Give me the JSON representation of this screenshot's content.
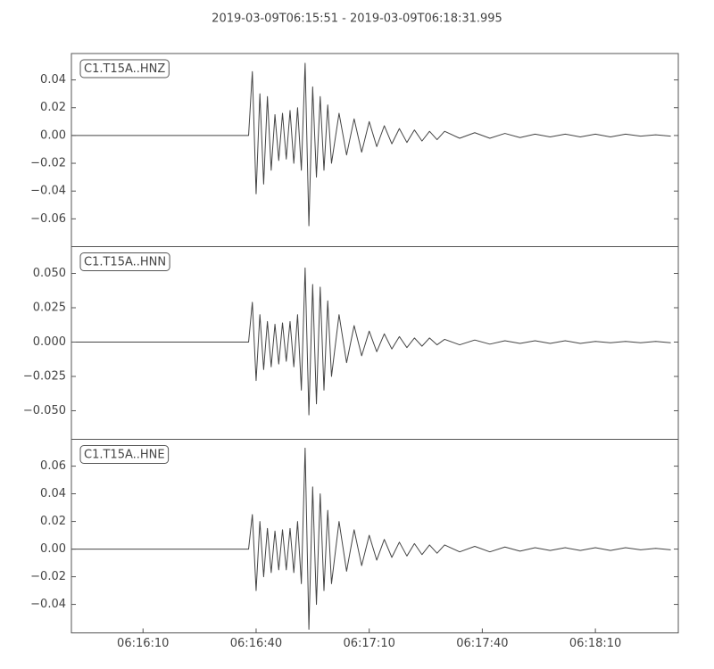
{
  "chart_data": [
    {
      "type": "line",
      "title": "2019-03-09T06:15:51  -  2019-03-09T06:18:31.995",
      "label": "C1.T15A..HNZ",
      "xlim": [
        "06:15:51",
        "06:18:31.995"
      ],
      "ylim": [
        -0.08,
        0.059
      ],
      "yticks": [
        {
          "value": 0.04,
          "label": "0.04"
        },
        {
          "value": 0.02,
          "label": "0.02"
        },
        {
          "value": 0,
          "label": "0.00"
        },
        {
          "value": -0.02,
          "label": "−0.02"
        },
        {
          "value": -0.04,
          "label": "−0.04"
        },
        {
          "value": -0.06,
          "label": "−0.06"
        }
      ],
      "color": "#444444",
      "x": [
        "06:15:51",
        "06:16:38",
        "06:16:39",
        "06:16:40",
        "06:16:41",
        "06:16:42",
        "06:16:43",
        "06:16:44",
        "06:16:45",
        "06:16:46",
        "06:16:47",
        "06:16:48",
        "06:16:49",
        "06:16:50",
        "06:16:51",
        "06:16:52",
        "06:16:53",
        "06:16:54",
        "06:16:55",
        "06:16:56",
        "06:16:57",
        "06:16:58",
        "06:16:59",
        "06:17:00",
        "06:17:02",
        "06:17:04",
        "06:17:06",
        "06:17:08",
        "06:17:10",
        "06:17:12",
        "06:17:14",
        "06:17:16",
        "06:17:18",
        "06:17:20",
        "06:17:22",
        "06:17:24",
        "06:17:26",
        "06:17:28",
        "06:17:30",
        "06:17:34",
        "06:17:38",
        "06:17:42",
        "06:17:46",
        "06:17:50",
        "06:17:54",
        "06:17:58",
        "06:18:02",
        "06:18:06",
        "06:18:10",
        "06:18:14",
        "06:18:18",
        "06:18:22",
        "06:18:26",
        "06:18:30"
      ],
      "values": [
        0,
        0,
        0.046,
        -0.042,
        0.03,
        -0.035,
        0.028,
        -0.025,
        0.015,
        -0.018,
        0.016,
        -0.017,
        0.018,
        -0.02,
        0.02,
        -0.025,
        0.052,
        -0.065,
        0.035,
        -0.03,
        0.028,
        -0.025,
        0.022,
        -0.02,
        0.016,
        -0.014,
        0.012,
        -0.012,
        0.01,
        -0.008,
        0.007,
        -0.006,
        0.005,
        -0.005,
        0.004,
        -0.004,
        0.003,
        -0.003,
        0.003,
        -0.002,
        0.002,
        -0.002,
        0.0015,
        -0.0015,
        0.001,
        -0.001,
        0.001,
        -0.001,
        0.001,
        -0.001,
        0.001,
        -0.0005,
        0.0005,
        -0.0005
      ]
    },
    {
      "type": "line",
      "label": "C1.T15A..HNN",
      "xlim": [
        "06:15:51",
        "06:18:31.995"
      ],
      "ylim": [
        -0.0708,
        0.0695
      ],
      "yticks": [
        {
          "value": 0.05,
          "label": "0.050"
        },
        {
          "value": 0.025,
          "label": "0.025"
        },
        {
          "value": 0,
          "label": "0.000"
        },
        {
          "value": -0.025,
          "label": "−0.025"
        },
        {
          "value": -0.05,
          "label": "−0.050"
        }
      ],
      "color": "#444444",
      "x": [
        "06:15:51",
        "06:16:38",
        "06:16:39",
        "06:16:40",
        "06:16:41",
        "06:16:42",
        "06:16:43",
        "06:16:44",
        "06:16:45",
        "06:16:46",
        "06:16:47",
        "06:16:48",
        "06:16:49",
        "06:16:50",
        "06:16:51",
        "06:16:52",
        "06:16:53",
        "06:16:54",
        "06:16:55",
        "06:16:56",
        "06:16:57",
        "06:16:58",
        "06:16:59",
        "06:17:00",
        "06:17:02",
        "06:17:04",
        "06:17:06",
        "06:17:08",
        "06:17:10",
        "06:17:12",
        "06:17:14",
        "06:17:16",
        "06:17:18",
        "06:17:20",
        "06:17:22",
        "06:17:24",
        "06:17:26",
        "06:17:28",
        "06:17:30",
        "06:17:34",
        "06:17:38",
        "06:17:42",
        "06:17:46",
        "06:17:50",
        "06:17:54",
        "06:17:58",
        "06:18:02",
        "06:18:06",
        "06:18:10",
        "06:18:14",
        "06:18:18",
        "06:18:22",
        "06:18:26",
        "06:18:30"
      ],
      "values": [
        0,
        0,
        0.029,
        -0.028,
        0.02,
        -0.02,
        0.015,
        -0.018,
        0.013,
        -0.016,
        0.014,
        -0.014,
        0.015,
        -0.018,
        0.02,
        -0.035,
        0.054,
        -0.053,
        0.042,
        -0.045,
        0.04,
        -0.035,
        0.03,
        -0.025,
        0.02,
        -0.015,
        0.012,
        -0.01,
        0.008,
        -0.007,
        0.006,
        -0.005,
        0.004,
        -0.004,
        0.003,
        -0.003,
        0.003,
        -0.002,
        0.002,
        -0.002,
        0.0015,
        -0.0015,
        0.001,
        -0.001,
        0.001,
        -0.001,
        0.001,
        -0.001,
        0.0005,
        -0.0005,
        0.0005,
        -0.0005,
        0.0005,
        -0.0005
      ]
    },
    {
      "type": "line",
      "label": "C1.T15A..HNE",
      "xlim": [
        "06:15:51",
        "06:18:31.995"
      ],
      "ylim": [
        -0.0606,
        0.0794
      ],
      "yticks": [
        {
          "value": 0.06,
          "label": "0.06"
        },
        {
          "value": 0.04,
          "label": "0.04"
        },
        {
          "value": 0.02,
          "label": "0.02"
        },
        {
          "value": 0,
          "label": "0.00"
        },
        {
          "value": -0.02,
          "label": "−0.02"
        },
        {
          "value": -0.04,
          "label": "−0.04"
        }
      ],
      "xticks": [
        "06:16:10",
        "06:16:40",
        "06:17:10",
        "06:17:40",
        "06:18:10"
      ],
      "color": "#444444",
      "x": [
        "06:15:51",
        "06:16:38",
        "06:16:39",
        "06:16:40",
        "06:16:41",
        "06:16:42",
        "06:16:43",
        "06:16:44",
        "06:16:45",
        "06:16:46",
        "06:16:47",
        "06:16:48",
        "06:16:49",
        "06:16:50",
        "06:16:51",
        "06:16:52",
        "06:16:53",
        "06:16:54",
        "06:16:55",
        "06:16:56",
        "06:16:57",
        "06:16:58",
        "06:16:59",
        "06:17:00",
        "06:17:02",
        "06:17:04",
        "06:17:06",
        "06:17:08",
        "06:17:10",
        "06:17:12",
        "06:17:14",
        "06:17:16",
        "06:17:18",
        "06:17:20",
        "06:17:22",
        "06:17:24",
        "06:17:26",
        "06:17:28",
        "06:17:30",
        "06:17:34",
        "06:17:38",
        "06:17:42",
        "06:17:46",
        "06:17:50",
        "06:17:54",
        "06:17:58",
        "06:18:02",
        "06:18:06",
        "06:18:10",
        "06:18:14",
        "06:18:18",
        "06:18:22",
        "06:18:26",
        "06:18:30"
      ],
      "values": [
        0,
        0,
        0.025,
        -0.03,
        0.02,
        -0.02,
        0.015,
        -0.017,
        0.013,
        -0.015,
        0.014,
        -0.015,
        0.015,
        -0.017,
        0.02,
        -0.025,
        0.073,
        -0.058,
        0.045,
        -0.04,
        0.04,
        -0.03,
        0.028,
        -0.025,
        0.02,
        -0.016,
        0.014,
        -0.012,
        0.01,
        -0.008,
        0.007,
        -0.006,
        0.005,
        -0.005,
        0.004,
        -0.004,
        0.003,
        -0.003,
        0.003,
        -0.002,
        0.002,
        -0.002,
        0.0015,
        -0.0015,
        0.001,
        -0.001,
        0.001,
        -0.001,
        0.001,
        -0.001,
        0.001,
        -0.0005,
        0.0005,
        -0.0005
      ]
    }
  ]
}
